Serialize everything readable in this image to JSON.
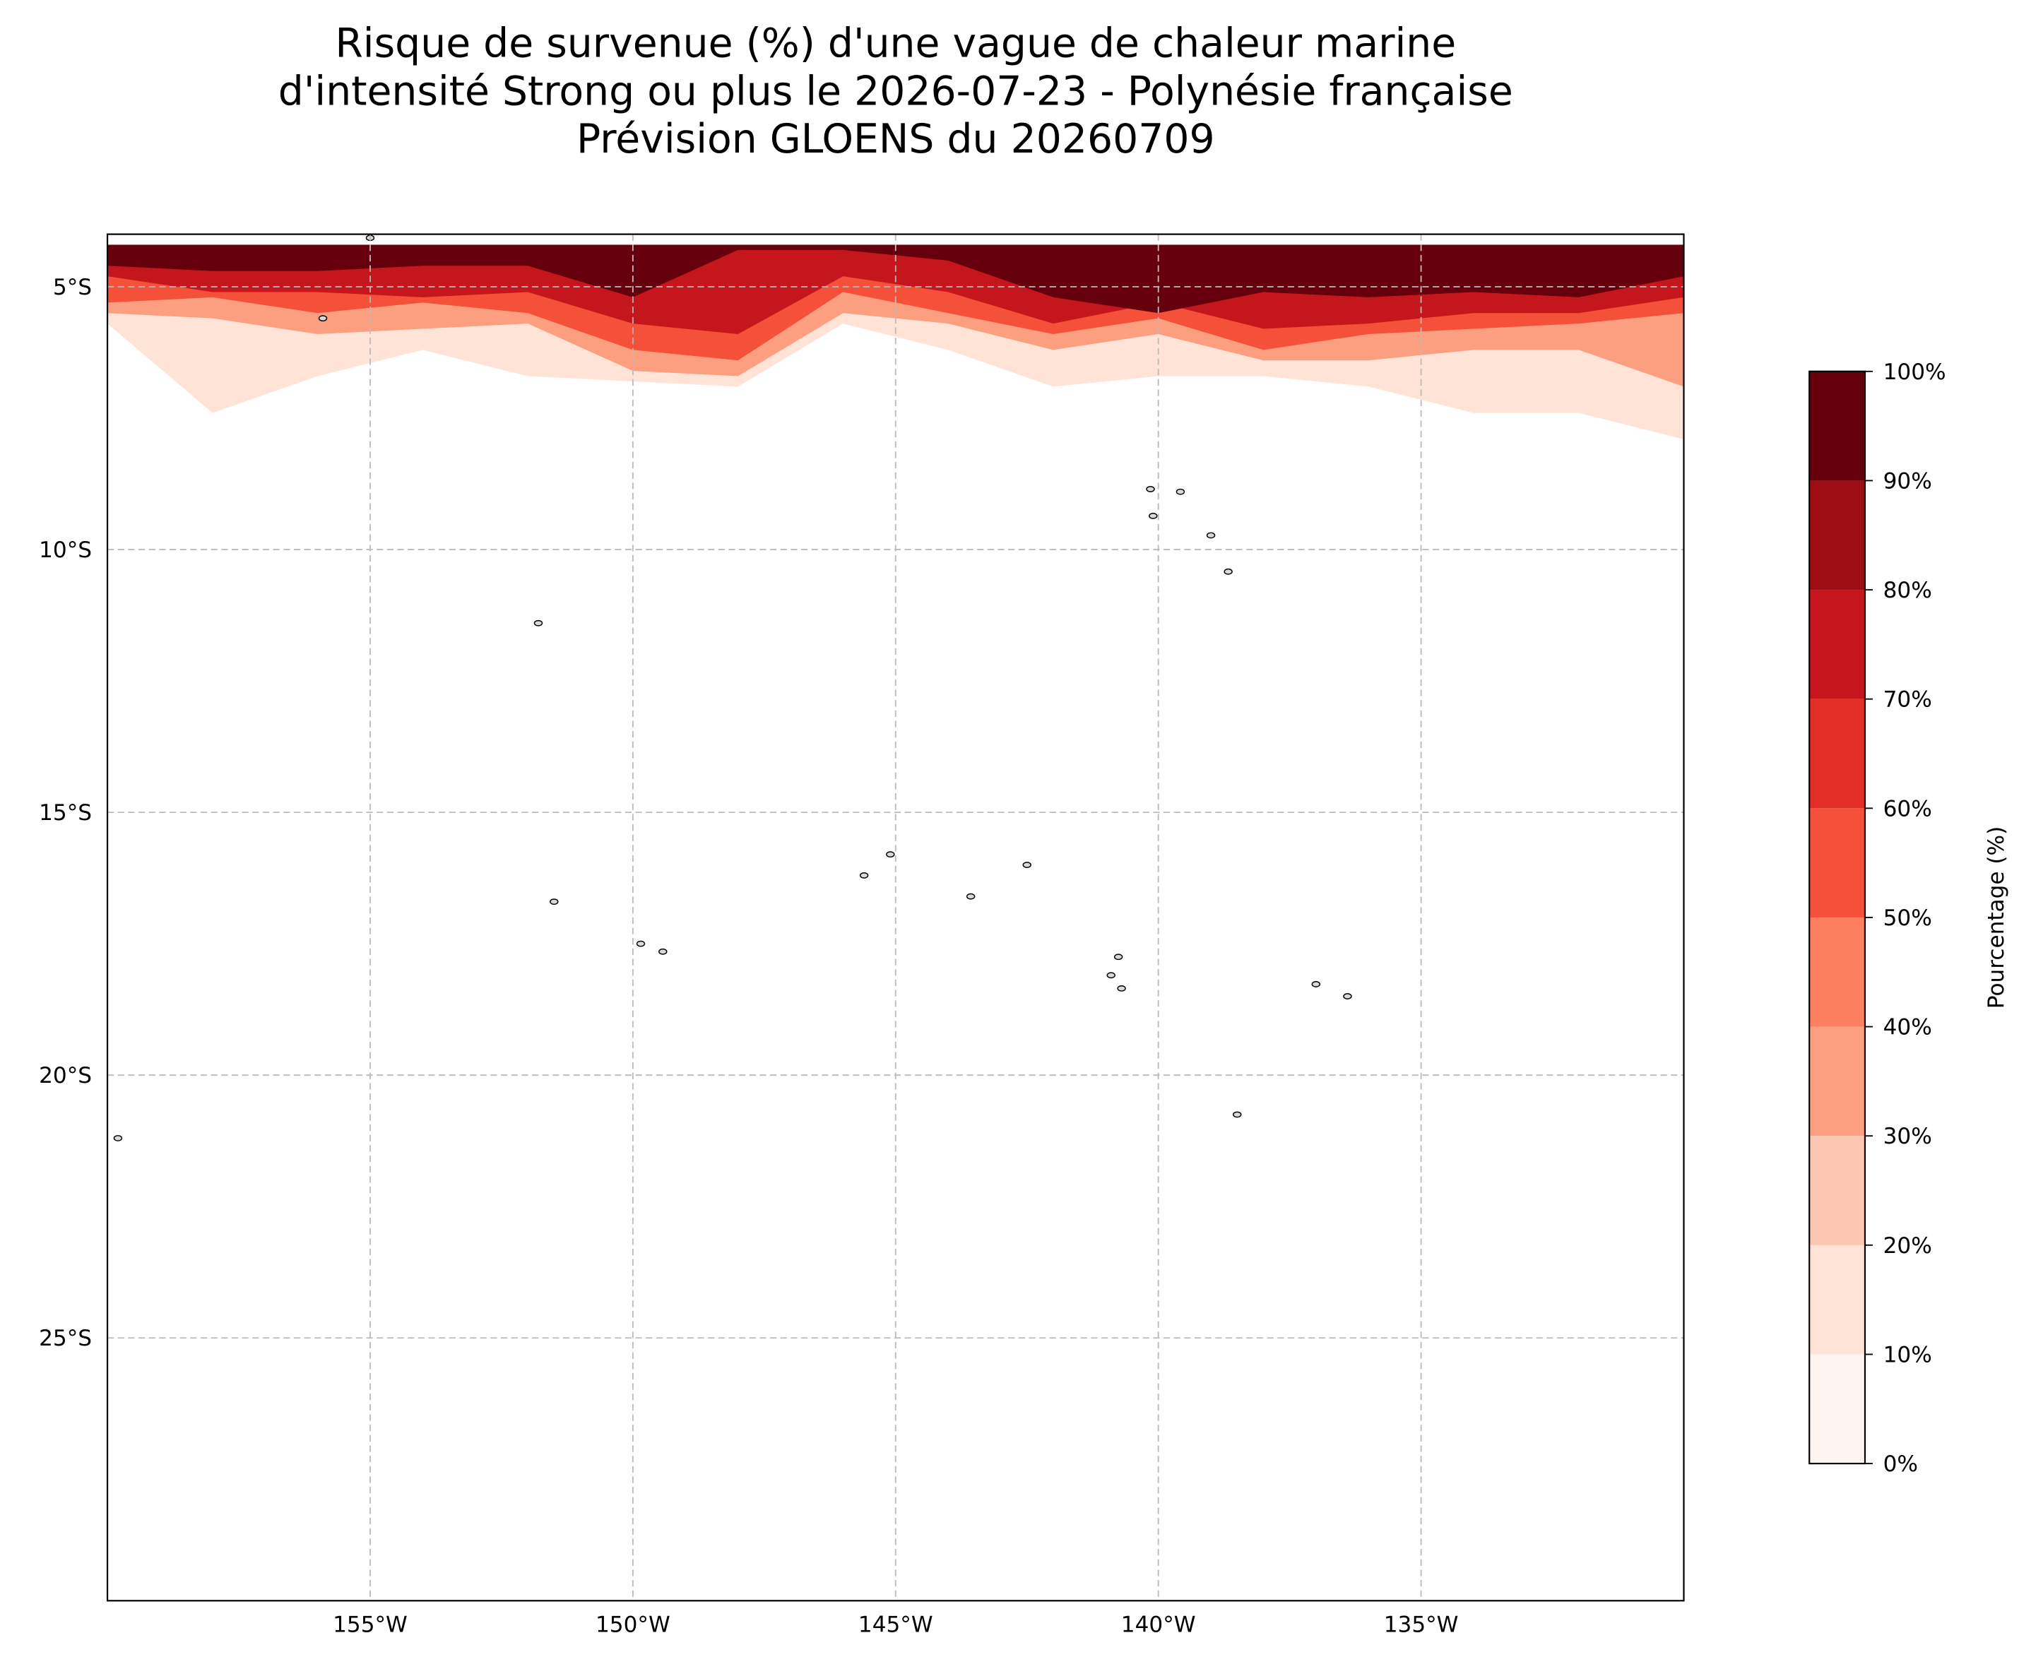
{
  "chart_data": {
    "type": "map",
    "title": [
      "Risque de survenue (%) d'une vague de chaleur marine",
      "d'intensité Strong ou plus le 2026-07-23 - Polynésie française",
      "Prévision GLOENS du 20260709"
    ],
    "xlim": [
      -160,
      -130
    ],
    "ylim": [
      -30,
      -4
    ],
    "xticks": [
      {
        "value": -155,
        "label": "155°W"
      },
      {
        "value": -150,
        "label": "150°W"
      },
      {
        "value": -145,
        "label": "145°W"
      },
      {
        "value": -140,
        "label": "140°W"
      },
      {
        "value": -135,
        "label": "135°W"
      }
    ],
    "yticks": [
      {
        "value": -5,
        "label": "5°S"
      },
      {
        "value": -10,
        "label": "10°S"
      },
      {
        "value": -15,
        "label": "15°S"
      },
      {
        "value": -20,
        "label": "20°S"
      },
      {
        "value": -25,
        "label": "25°S"
      }
    ],
    "grid": true,
    "field_top": -4.2,
    "field_lons": [
      -160,
      -158,
      -156,
      -154,
      -152,
      -150,
      -148,
      -146,
      -144,
      -142,
      -140,
      -138,
      -136,
      -134,
      -132,
      -130
    ],
    "field": [
      {
        "level": 10,
        "color": "#fee3d6",
        "boundary": [
          -5.7,
          -7.4,
          -6.7,
          -6.2,
          -6.7,
          -6.8,
          -6.9,
          -5.7,
          -6.2,
          -6.9,
          -6.7,
          -6.7,
          -6.9,
          -7.4,
          -7.4,
          -7.9
        ]
      },
      {
        "level": 30,
        "color": "#fc9e80",
        "boundary": [
          -5.5,
          -5.6,
          -5.9,
          -5.8,
          -5.7,
          -6.6,
          -6.7,
          -5.5,
          -5.7,
          -6.2,
          -5.9,
          -6.4,
          -6.4,
          -6.2,
          -6.2,
          -6.9
        ]
      },
      {
        "level": 50,
        "color": "#f4503a",
        "boundary": [
          -5.3,
          -5.2,
          -5.5,
          -5.3,
          -5.5,
          -6.2,
          -6.4,
          -5.1,
          -5.5,
          -5.9,
          -5.6,
          -6.2,
          -5.9,
          -5.8,
          -5.7,
          -5.5
        ]
      },
      {
        "level": 70,
        "color": "#c4161c",
        "boundary": [
          -4.8,
          -5.1,
          -5.1,
          -5.2,
          -5.1,
          -5.7,
          -5.9,
          -4.8,
          -5.1,
          -5.7,
          -5.3,
          -5.8,
          -5.7,
          -5.5,
          -5.5,
          -5.2
        ]
      },
      {
        "level": 90,
        "color": "#67000d",
        "boundary": [
          -4.6,
          -4.7,
          -4.7,
          -4.6,
          -4.6,
          -5.2,
          -4.3,
          -4.3,
          -4.5,
          -5.2,
          -5.5,
          -5.1,
          -5.2,
          -5.1,
          -5.2,
          -4.8
        ]
      }
    ],
    "islands": [
      [
        -140.15,
        -8.85
      ],
      [
        -139.58,
        -8.9
      ],
      [
        -140.1,
        -9.36
      ],
      [
        -139.0,
        -9.73
      ],
      [
        -138.67,
        -10.42
      ],
      [
        -151.8,
        -11.4
      ],
      [
        -151.5,
        -16.7
      ],
      [
        -149.43,
        -17.65
      ],
      [
        -149.85,
        -17.5
      ],
      [
        -145.6,
        -16.2
      ],
      [
        -145.1,
        -15.8
      ],
      [
        -143.57,
        -16.6
      ],
      [
        -142.5,
        -16.0
      ],
      [
        -140.76,
        -17.75
      ],
      [
        -140.9,
        -18.1
      ],
      [
        -140.7,
        -18.35
      ],
      [
        -137.0,
        -18.27
      ],
      [
        -136.4,
        -18.5
      ],
      [
        -138.5,
        -20.75
      ],
      [
        -159.8,
        -21.2
      ],
      [
        -155.9,
        -5.6
      ],
      [
        -155.0,
        -4.07
      ]
    ],
    "colorbar": {
      "label": "Pourcentage (%)",
      "colors": [
        "#fff5f0",
        "#fee3d6",
        "#fdc6b0",
        "#fc9e80",
        "#fc7f5f",
        "#f4503a",
        "#e32f27",
        "#c4161c",
        "#9c0d14",
        "#67000d"
      ],
      "lim": [
        0,
        100
      ],
      "ticks": [
        {
          "value": 0,
          "label": "0%"
        },
        {
          "value": 10,
          "label": "10%"
        },
        {
          "value": 20,
          "label": "20%"
        },
        {
          "value": 30,
          "label": "30%"
        },
        {
          "value": 40,
          "label": "40%"
        },
        {
          "value": 50,
          "label": "50%"
        },
        {
          "value": 60,
          "label": "60%"
        },
        {
          "value": 70,
          "label": "70%"
        },
        {
          "value": 80,
          "label": "80%"
        },
        {
          "value": 90,
          "label": "90%"
        },
        {
          "value": 100,
          "label": "100%"
        }
      ]
    }
  }
}
